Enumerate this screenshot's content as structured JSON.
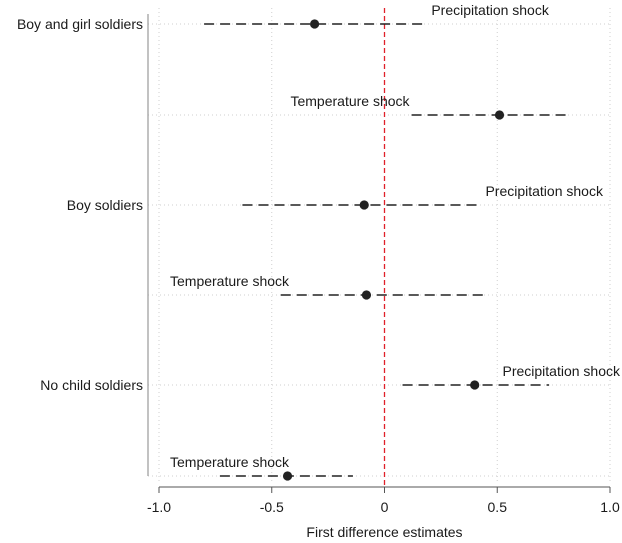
{
  "chart_data": {
    "type": "scatter",
    "subtype": "coefficient-plot",
    "xlabel": "First difference estimates",
    "xlim": [
      -1.0,
      1.0
    ],
    "xticks": [
      -1.0,
      -0.5,
      0,
      0.5,
      1.0
    ],
    "xtick_labels": [
      "-1.0",
      "-0.5",
      "0",
      "0.5",
      "1.0"
    ],
    "reference_line": {
      "x": 0,
      "color": "#e0202a",
      "style": "dashed"
    },
    "grid": true,
    "point_color": "#222222",
    "ci_style": "dashed",
    "groups": [
      {
        "label": "Boy and girl soldiers",
        "estimates": [
          {
            "label": "Precipitation shock",
            "estimate": -0.31,
            "ci_low": -0.8,
            "ci_high": 0.19
          },
          {
            "label": "Temperature shock",
            "estimate": 0.51,
            "ci_low": 0.12,
            "ci_high": 0.82
          }
        ]
      },
      {
        "label": "Boy soldiers",
        "estimates": [
          {
            "label": "Precipitation shock",
            "estimate": -0.09,
            "ci_low": -0.63,
            "ci_high": 0.43
          },
          {
            "label": "Temperature shock",
            "estimate": -0.08,
            "ci_low": -0.46,
            "ci_high": 0.44
          }
        ]
      },
      {
        "label": "No child soldiers",
        "estimates": [
          {
            "label": "Precipitation shock",
            "estimate": 0.4,
            "ci_low": 0.08,
            "ci_high": 0.73
          },
          {
            "label": "Temperature shock",
            "estimate": -0.43,
            "ci_low": -0.73,
            "ci_high": -0.14
          }
        ]
      }
    ]
  }
}
